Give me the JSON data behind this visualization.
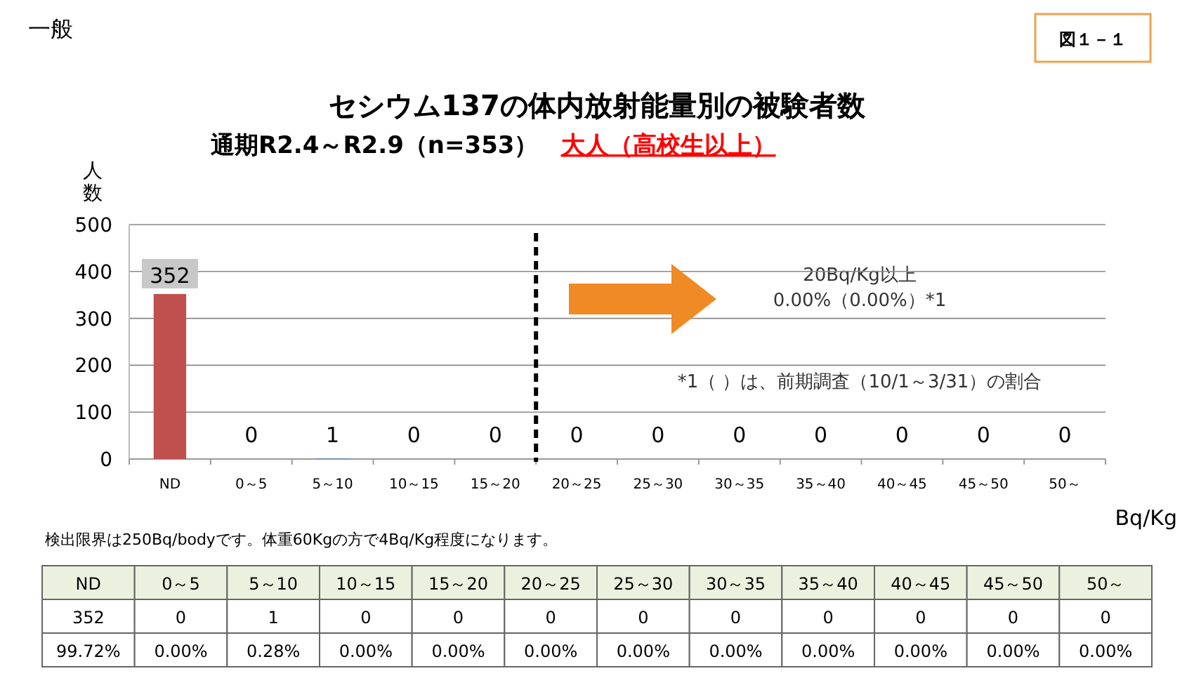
{
  "chart_data": {
    "type": "bar",
    "title": "セシウム137の体内放射能量別の被験者数",
    "subtitle": "通期R2.4～R2.9（n=353）",
    "ylabel": "人数",
    "xlabel": "Bq/Kg",
    "categories": [
      "ND",
      "0～5",
      "5～10",
      "10～15",
      "15～20",
      "20～25",
      "25～30",
      "30～35",
      "35～40",
      "40～45",
      "45～50",
      "50～"
    ],
    "values": [
      352,
      0,
      1,
      0,
      0,
      0,
      0,
      0,
      0,
      0,
      0,
      0
    ],
    "colors": [
      "#c0504d",
      "#4f81bd",
      "#4f81bd",
      "#4f81bd",
      "#4f81bd",
      "#4f81bd",
      "#4f81bd",
      "#4f81bd",
      "#4f81bd",
      "#4f81bd",
      "#4f81bd",
      "#4f81bd"
    ],
    "ylim": [
      0,
      500
    ],
    "yticks": [
      0,
      100,
      200,
      300,
      400,
      500
    ],
    "grid": "y",
    "data_labels": true,
    "ref_lines": [
      {
        "axis": "x",
        "value": "20～25",
        "line_style": "dashed",
        "color": "#000000"
      }
    ],
    "annotations": [
      "一般",
      "図１－１",
      "大人（高校生以上）",
      "20Bq/Kg以上",
      "0.00%（0.00%）*1",
      "*1（ ）は、前期調査（10/1～3/31）の割合",
      "検出限界は250Bq/bodyです。体重60Kgの方で4Bq/Kg程度になります。",
      "99.72%",
      "0.00%",
      "0.28%",
      "0.00%",
      "0.00%",
      "0.00%",
      "0.00%",
      "0.00%",
      "0.00%",
      "0.00%",
      "0.00%",
      "0.00%",
      "352",
      "0",
      "1",
      "0",
      "0",
      "0",
      "0",
      "0",
      "0",
      "0",
      "0",
      "0"
    ]
  }
}
